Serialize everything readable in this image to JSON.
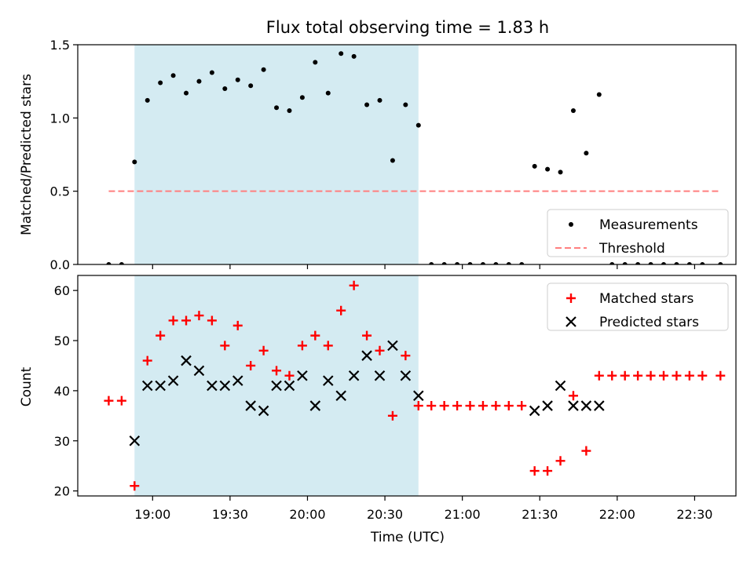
{
  "chart_data": {
    "title": "Flux total observing time = 1.83 h",
    "xlabel": "Time (UTC)",
    "xtick_labels": [
      "19:00",
      "19:30",
      "20:00",
      "20:30",
      "21:00",
      "21:30",
      "22:00",
      "22:30"
    ],
    "xtick_minutes": [
      1140,
      1170,
      1200,
      1230,
      1260,
      1290,
      1320,
      1350
    ],
    "xlim_minutes": [
      1111,
      1366
    ],
    "shaded_span_minutes": [
      1133,
      1243
    ],
    "shade_color": "#add8e6",
    "time_minutes": [
      1123,
      1128,
      1133,
      1138,
      1143,
      1148,
      1153,
      1158,
      1163,
      1168,
      1173,
      1178,
      1183,
      1188,
      1193,
      1198,
      1203,
      1208,
      1213,
      1218,
      1223,
      1228,
      1233,
      1238,
      1243,
      1248,
      1253,
      1258,
      1263,
      1268,
      1273,
      1278,
      1283,
      1288,
      1293,
      1298,
      1303,
      1308,
      1313,
      1318,
      1323,
      1328,
      1333,
      1338,
      1343,
      1348,
      1353,
      1360
    ],
    "panels": [
      {
        "type": "scatter",
        "ylabel": "Matched/Predicted stars",
        "ylim": [
          0,
          1.5
        ],
        "yticks": [
          0.0,
          0.5,
          1.0,
          1.5
        ],
        "ytick_labels": [
          "0.0",
          "0.5",
          "1.0",
          "1.5"
        ],
        "series": [
          {
            "name": "Measurements",
            "marker": "dot",
            "color": "#000000",
            "values": [
              0.0,
              0.0,
              0.7,
              1.12,
              1.24,
              1.29,
              1.17,
              1.25,
              1.31,
              1.2,
              1.26,
              1.22,
              1.33,
              1.07,
              1.05,
              1.14,
              1.38,
              1.17,
              1.44,
              1.42,
              1.09,
              1.12,
              0.71,
              1.09,
              0.95,
              0.0,
              0.0,
              0.0,
              0.0,
              0.0,
              0.0,
              0.0,
              0.0,
              0.67,
              0.65,
              0.63,
              1.05,
              0.76,
              1.16,
              0.0,
              0.0,
              0.0,
              0.0,
              0.0,
              0.0,
              0.0,
              0.0,
              0.0
            ]
          },
          {
            "name": "Threshold",
            "marker": "dashed-line",
            "color": "#ff7f7f",
            "x_range_minutes": [
              1123,
              1360
            ],
            "value": 0.5
          }
        ],
        "legend": "lower-right"
      },
      {
        "type": "scatter",
        "ylabel": "Count",
        "ylim": [
          19,
          63
        ],
        "yticks": [
          20,
          30,
          40,
          50,
          60
        ],
        "ytick_labels": [
          "20",
          "30",
          "40",
          "50",
          "60"
        ],
        "series": [
          {
            "name": "Matched stars",
            "marker": "plus",
            "color": "#ff0000",
            "values": [
              38,
              38,
              21,
              46,
              51,
              54,
              54,
              55,
              54,
              49,
              53,
              45,
              48,
              44,
              43,
              49,
              51,
              49,
              56,
              61,
              51,
              48,
              35,
              47,
              37,
              37,
              37,
              37,
              37,
              37,
              37,
              37,
              37,
              24,
              24,
              26,
              39,
              28,
              43,
              43,
              43,
              43,
              43,
              43,
              43,
              43,
              43,
              43
            ]
          },
          {
            "name": "Predicted stars",
            "marker": "x",
            "color": "#000000",
            "values": [
              null,
              null,
              30,
              41,
              41,
              42,
              46,
              44,
              41,
              41,
              42,
              37,
              36,
              41,
              41,
              43,
              37,
              42,
              39,
              43,
              47,
              43,
              49,
              43,
              39,
              null,
              null,
              null,
              null,
              null,
              null,
              null,
              null,
              36,
              37,
              41,
              37,
              37,
              37,
              null,
              null,
              null,
              null,
              null,
              null,
              null,
              null,
              null
            ]
          }
        ],
        "legend": "upper-right"
      }
    ]
  }
}
